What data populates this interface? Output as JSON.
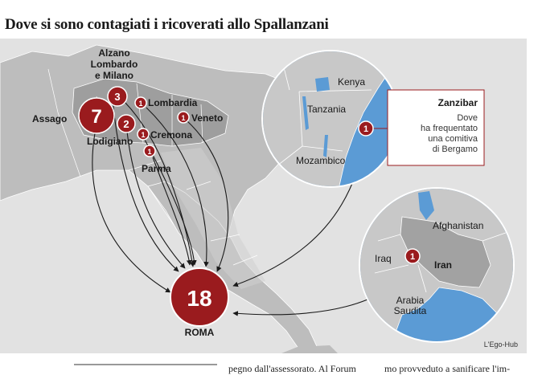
{
  "title": "Dove si sono contagiati i ricoverati allo Spallanzani",
  "credit": "L'Ego-Hub",
  "colors": {
    "background": "#e2e2e2",
    "land": "#bdbdbd",
    "land_highlight": "#9e9e9e",
    "sea": "#ffffff",
    "water_inset": "#5b9bd5",
    "marker": "#9a1b1e",
    "arrow": "#1a1a1a"
  },
  "italy": {
    "origins": [
      {
        "place": "Alzano\nLombardo\ne Milano",
        "count": "3"
      },
      {
        "place": "Assago",
        "count": "7"
      },
      {
        "place": "Lodigiano",
        "count": "2"
      },
      {
        "place": "Lombardia",
        "count": "1"
      },
      {
        "place": "Veneto",
        "count": "1"
      },
      {
        "place": "Cremona",
        "count": "1"
      },
      {
        "place": "Parma",
        "count": "1"
      }
    ],
    "destination": {
      "place": "ROMA",
      "count": "18"
    }
  },
  "africa_inset": {
    "labels": [
      "Kenya",
      "Tanzania",
      "Mozambico"
    ],
    "marker_count": "1",
    "callout": {
      "title": "Zanzibar",
      "text": "Dove\nha frequentato\nuna comitiva\ndi Bergamo"
    }
  },
  "iran_inset": {
    "labels": [
      "Afghanistan",
      "Iraq",
      "Iran",
      "Arabia\nSaudita"
    ],
    "marker_count": "1"
  },
  "article_snippets": [
    "pegno dall'assessorato. Al Forum",
    "mo provveduto a sanificare l'im-"
  ]
}
